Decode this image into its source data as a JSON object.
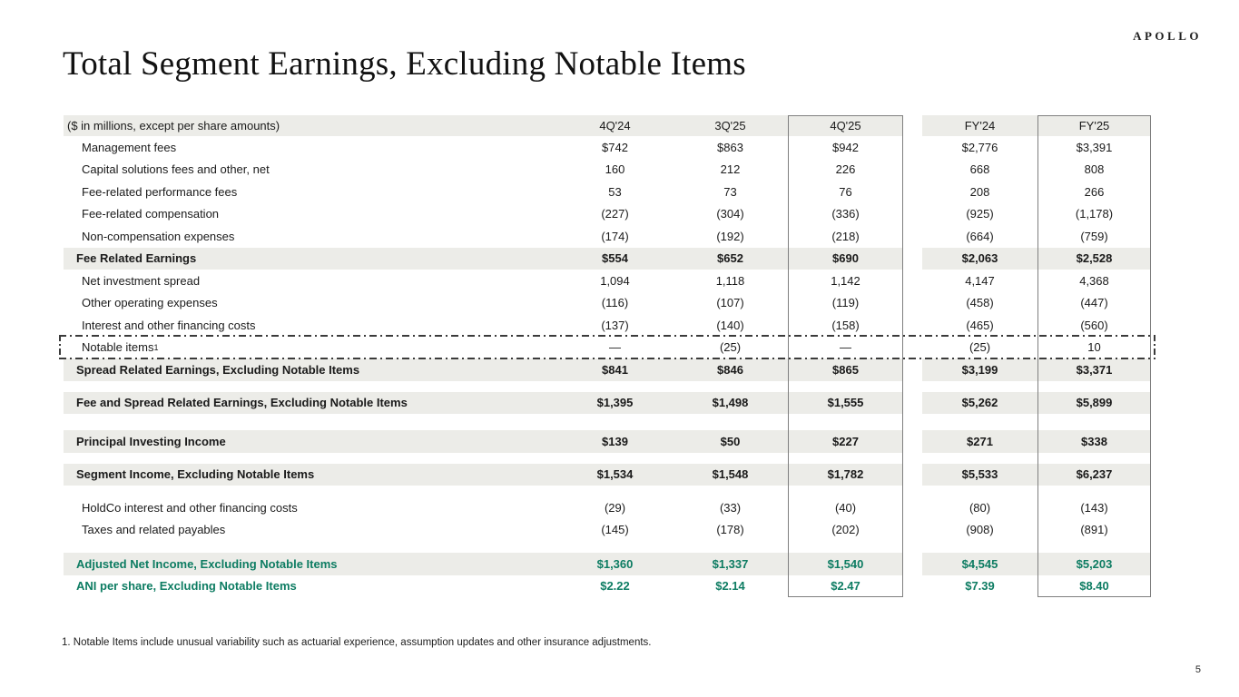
{
  "slide": {
    "title": "Total Segment Earnings, Excluding Notable Items",
    "logo": "APOLLO",
    "footnote": "1. Notable Items include unusual variability such as actuarial experience, assumption updates and other insurance adjustments.",
    "page_number": "5"
  },
  "colors": {
    "band_gray": "#ECECE8",
    "accent_green": "#0D7C62",
    "box_border_gray": "#7F7F7F"
  },
  "table": {
    "header_label": "($ in millions, except per share amounts)",
    "columns": [
      "4Q'24",
      "3Q'25",
      "4Q'25",
      "FY'24",
      "FY'25"
    ],
    "highlighted_columns": [
      "4Q'25",
      "FY'25"
    ],
    "rows": [
      {
        "label": "Management fees",
        "style": "item",
        "values": [
          "$742",
          "$863",
          "$942",
          "$2,776",
          "$3,391"
        ]
      },
      {
        "label": "Capital solutions fees and other, net",
        "style": "item",
        "values": [
          "160",
          "212",
          "226",
          "668",
          "808"
        ]
      },
      {
        "label": "Fee-related performance fees",
        "style": "item",
        "values": [
          "53",
          "73",
          "76",
          "208",
          "266"
        ]
      },
      {
        "label": "Fee-related compensation",
        "style": "item",
        "values": [
          "(227)",
          "(304)",
          "(336)",
          "(925)",
          "(1,178)"
        ]
      },
      {
        "label": "Non-compensation expenses",
        "style": "item",
        "values": [
          "(174)",
          "(192)",
          "(218)",
          "(664)",
          "(759)"
        ]
      },
      {
        "label": "Fee Related Earnings",
        "style": "subtotal",
        "values": [
          "$554",
          "$652",
          "$690",
          "$2,063",
          "$2,528"
        ]
      },
      {
        "label": "Net investment spread",
        "style": "item",
        "values": [
          "1,094",
          "1,118",
          "1,142",
          "4,147",
          "4,368"
        ]
      },
      {
        "label": "Other operating expenses",
        "style": "item",
        "values": [
          "(116)",
          "(107)",
          "(119)",
          "(458)",
          "(447)"
        ]
      },
      {
        "label": "Interest and other financing costs",
        "style": "item",
        "values": [
          "(137)",
          "(140)",
          "(158)",
          "(465)",
          "(560)"
        ]
      },
      {
        "label": "Notable items",
        "sup": "1",
        "style": "notable",
        "values": [
          "—",
          "(25)",
          "—",
          "(25)",
          "10"
        ]
      },
      {
        "label": "Spread Related Earnings, Excluding Notable Items",
        "style": "subtotal",
        "values": [
          "$841",
          "$846",
          "$865",
          "$3,199",
          "$3,371"
        ]
      },
      {
        "style": "spacer",
        "h": 12
      },
      {
        "label": "Fee and Spread Related Earnings, Excluding Notable Items",
        "style": "subtotal",
        "values": [
          "$1,395",
          "$1,498",
          "$1,555",
          "$5,262",
          "$5,899"
        ]
      },
      {
        "style": "spacer",
        "h": 18
      },
      {
        "label": "Principal Investing Income",
        "style": "subtotal",
        "values": [
          "$139",
          "$50",
          "$227",
          "$271",
          "$338"
        ]
      },
      {
        "style": "spacer",
        "h": 12
      },
      {
        "label": "Segment Income, Excluding Notable Items",
        "style": "subtotal",
        "values": [
          "$1,534",
          "$1,548",
          "$1,782",
          "$5,533",
          "$6,237"
        ]
      },
      {
        "style": "spacer",
        "h": 12
      },
      {
        "label": "HoldCo interest and other financing costs",
        "style": "item",
        "values": [
          "(29)",
          "(33)",
          "(40)",
          "(80)",
          "(143)"
        ]
      },
      {
        "label": "Taxes and related payables",
        "style": "item",
        "values": [
          "(145)",
          "(178)",
          "(202)",
          "(908)",
          "(891)"
        ]
      },
      {
        "style": "spacer",
        "h": 13
      },
      {
        "label": "Adjusted Net Income, Excluding Notable Items",
        "style": "total-green",
        "values": [
          "$1,360",
          "$1,337",
          "$1,540",
          "$4,545",
          "$5,203"
        ]
      },
      {
        "label": "ANI per share, Excluding Notable Items",
        "style": "green-plain",
        "values": [
          "$2.22",
          "$2.14",
          "$2.47",
          "$7.39",
          "$8.40"
        ]
      }
    ]
  }
}
